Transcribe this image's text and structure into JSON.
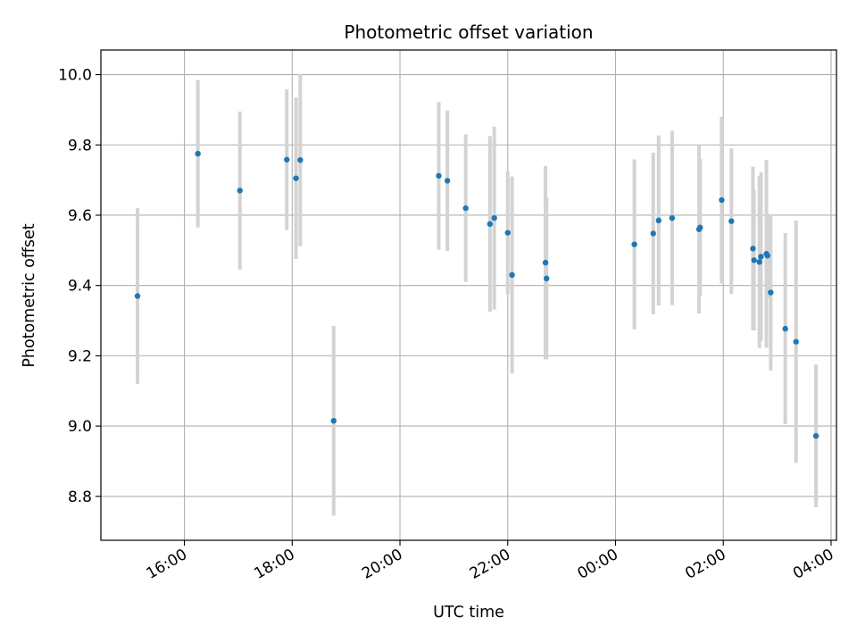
{
  "chart_data": {
    "type": "scatter",
    "title": "Photometric offset variation",
    "xlabel": "UTC time",
    "ylabel": "Photometric offset",
    "x_unit": "hours after 00:00 on the first date (values ≥ 24 are the next day)",
    "xlim": [
      14.45,
      28.1
    ],
    "ylim": [
      8.675,
      10.07
    ],
    "grid": true,
    "x_ticks": [
      {
        "value": 16,
        "label": "16:00"
      },
      {
        "value": 18,
        "label": "18:00"
      },
      {
        "value": 20,
        "label": "20:00"
      },
      {
        "value": 22,
        "label": "22:00"
      },
      {
        "value": 24,
        "label": "00:00"
      },
      {
        "value": 26,
        "label": "02:00"
      },
      {
        "value": 28,
        "label": "04:00"
      }
    ],
    "y_ticks": [
      {
        "value": 8.8,
        "label": "8.8"
      },
      {
        "value": 9.0,
        "label": "9.0"
      },
      {
        "value": 9.2,
        "label": "9.2"
      },
      {
        "value": 9.4,
        "label": "9.4"
      },
      {
        "value": 9.6,
        "label": "9.6"
      },
      {
        "value": 9.8,
        "label": "9.8"
      },
      {
        "value": 10.0,
        "label": "10.0"
      }
    ],
    "colors": {
      "point": "#1f77b4",
      "errorbar": "#d3d3d3",
      "grid": "#b0b0b0"
    },
    "points": [
      {
        "x": 15.13,
        "y": 9.37,
        "err": 0.25
      },
      {
        "x": 16.25,
        "y": 9.775,
        "err": 0.21
      },
      {
        "x": 17.03,
        "y": 9.67,
        "err": 0.225
      },
      {
        "x": 17.9,
        "y": 9.758,
        "err": 0.2
      },
      {
        "x": 18.07,
        "y": 9.705,
        "err": 0.23
      },
      {
        "x": 18.15,
        "y": 9.757,
        "err": 0.245
      },
      {
        "x": 18.77,
        "y": 9.015,
        "err": 0.27
      },
      {
        "x": 20.72,
        "y": 9.712,
        "err": 0.21
      },
      {
        "x": 20.88,
        "y": 9.698,
        "err": 0.2
      },
      {
        "x": 21.22,
        "y": 9.62,
        "err": 0.21
      },
      {
        "x": 21.67,
        "y": 9.575,
        "err": 0.25
      },
      {
        "x": 21.75,
        "y": 9.592,
        "err": 0.26
      },
      {
        "x": 22.0,
        "y": 9.55,
        "err": 0.175
      },
      {
        "x": 22.08,
        "y": 9.43,
        "err": 0.28
      },
      {
        "x": 22.7,
        "y": 9.465,
        "err": 0.275
      },
      {
        "x": 22.72,
        "y": 9.42,
        "err": 0.23
      },
      {
        "x": 24.35,
        "y": 9.517,
        "err": 0.242
      },
      {
        "x": 24.7,
        "y": 9.548,
        "err": 0.23
      },
      {
        "x": 24.8,
        "y": 9.585,
        "err": 0.242
      },
      {
        "x": 25.05,
        "y": 9.592,
        "err": 0.248
      },
      {
        "x": 25.55,
        "y": 9.56,
        "err": 0.24
      },
      {
        "x": 25.57,
        "y": 9.565,
        "err": 0.195
      },
      {
        "x": 25.97,
        "y": 9.643,
        "err": 0.237
      },
      {
        "x": 26.15,
        "y": 9.583,
        "err": 0.207
      },
      {
        "x": 26.55,
        "y": 9.505,
        "err": 0.233
      },
      {
        "x": 26.57,
        "y": 9.472,
        "err": 0.2
      },
      {
        "x": 26.67,
        "y": 9.467,
        "err": 0.245
      },
      {
        "x": 26.7,
        "y": 9.482,
        "err": 0.24
      },
      {
        "x": 26.8,
        "y": 9.49,
        "err": 0.267
      },
      {
        "x": 26.82,
        "y": 9.485,
        "err": 0.12
      },
      {
        "x": 26.88,
        "y": 9.38,
        "err": 0.222
      },
      {
        "x": 27.15,
        "y": 9.277,
        "err": 0.272
      },
      {
        "x": 27.35,
        "y": 9.24,
        "err": 0.345
      },
      {
        "x": 27.72,
        "y": 8.972,
        "err": 0.203
      }
    ]
  }
}
